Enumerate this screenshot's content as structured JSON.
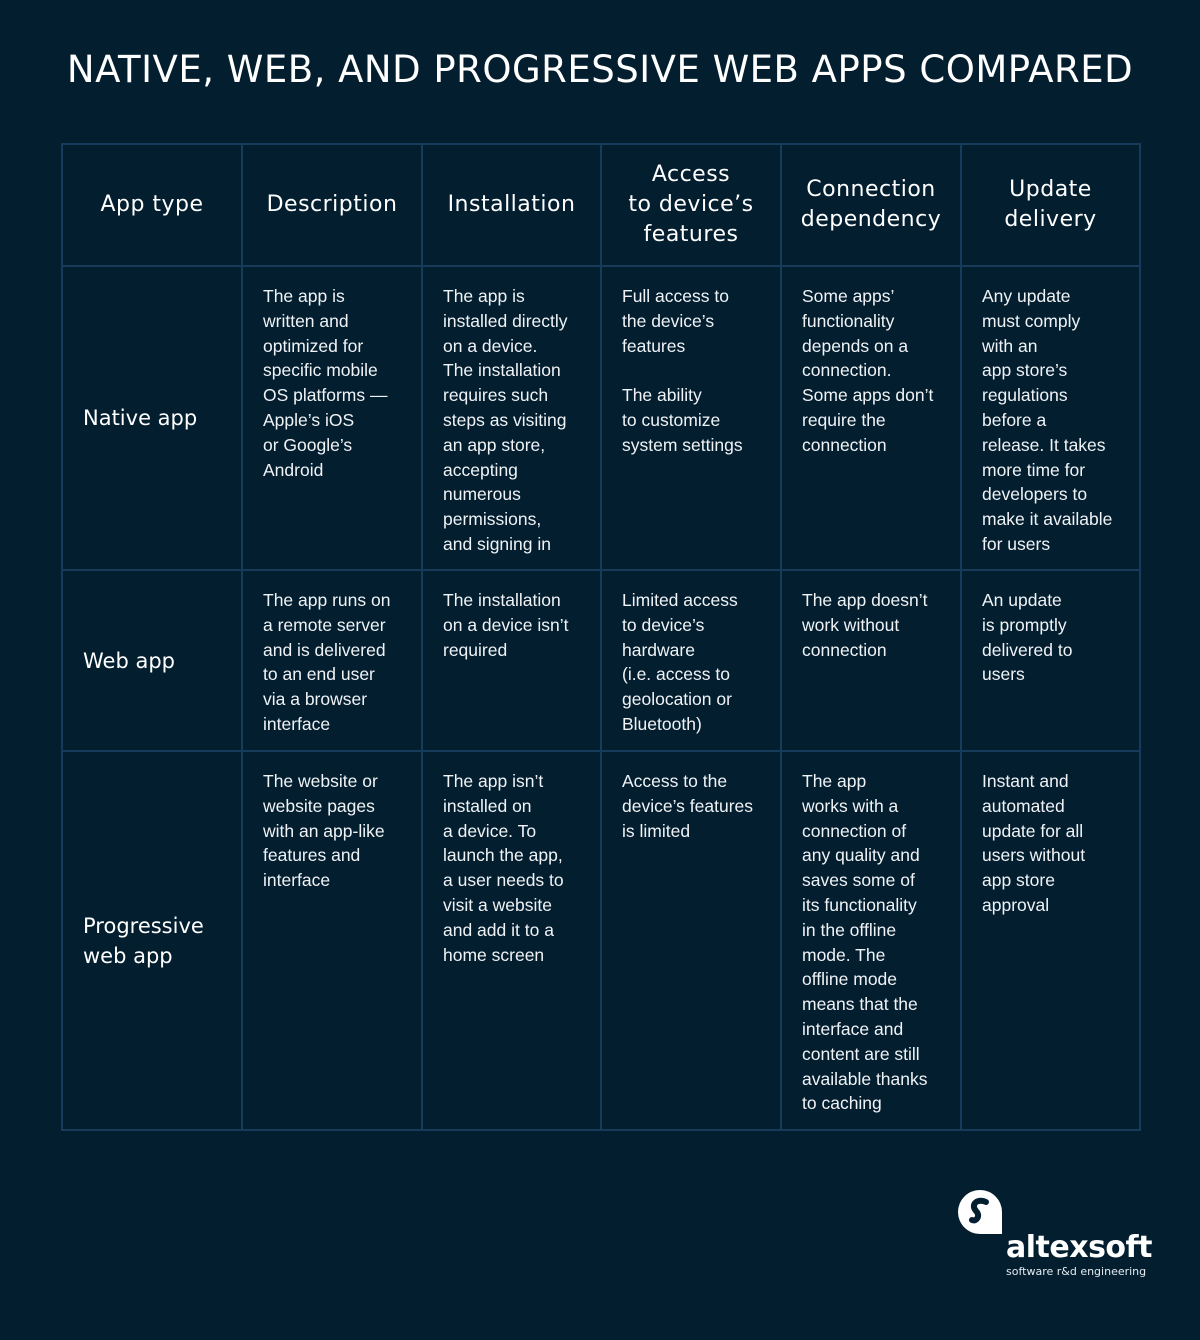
{
  "title": "NATIVE, WEB, AND PROGRESSIVE WEB APPS COMPARED",
  "headers": [
    "App type",
    "Description",
    "Installation",
    "Access\nto device’s\nfeatures",
    "Connection\ndependency",
    "Update\ndelivery"
  ],
  "rows": [
    {
      "type": "Native app",
      "cells": [
        "The app is\nwritten and\noptimized for\nspecific mobile\nOS platforms —\nApple’s iOS\nor Google’s\nAndroid",
        "The app is\ninstalled directly\non a device.\nThe installation\nrequires such\nsteps as visiting\nan app store,\naccepting\nnumerous\npermissions,\nand signing in",
        "Full access to\nthe device’s\nfeatures\n\nThe ability\nto customize\nsystem settings",
        "Some apps’\nfunctionality\ndepends on a\nconnection.\nSome apps don’t\nrequire the\nconnection",
        "Any update\nmust comply\nwith an\napp store’s\nregulations\nbefore a\nrelease. It takes\nmore time for\ndevelopers to\nmake it available\nfor users"
      ]
    },
    {
      "type": "Web app",
      "cells": [
        "The app runs on\na remote server\nand is delivered\nto an end user\nvia a browser\ninterface",
        "The installation\non a device isn’t\nrequired",
        "Limited access\nto device’s\nhardware\n(i.e. access to\ngeolocation or\nBluetooth)",
        "The app doesn’t\nwork without\nconnection",
        "An update\nis promptly\ndelivered to\nusers"
      ]
    },
    {
      "type": "Progressive\nweb app",
      "cells": [
        "The website or\nwebsite pages\nwith an app-like\nfeatures and\ninterface",
        "The app isn’t\ninstalled on\na device. To\nlaunch the app,\na user needs to\nvisit a website\nand add it to a\nhome screen",
        "Access to the\ndevice’s features\nis limited",
        "The app\nworks with a\nconnection of\nany quality and\nsaves some of\nits functionality\nin the offline\nmode. The\noffline mode\nmeans that the\ninterface and\ncontent are still\navailable thanks\nto caching",
        "Instant and\nautomated\nupdate for all\nusers without\napp store\napproval"
      ]
    }
  ],
  "logo": {
    "brand": "altexsoft",
    "tagline": "software r&d engineering"
  },
  "colors": {
    "background": "#031e2f",
    "grid": "#173b5a",
    "text": "#ffffff"
  }
}
